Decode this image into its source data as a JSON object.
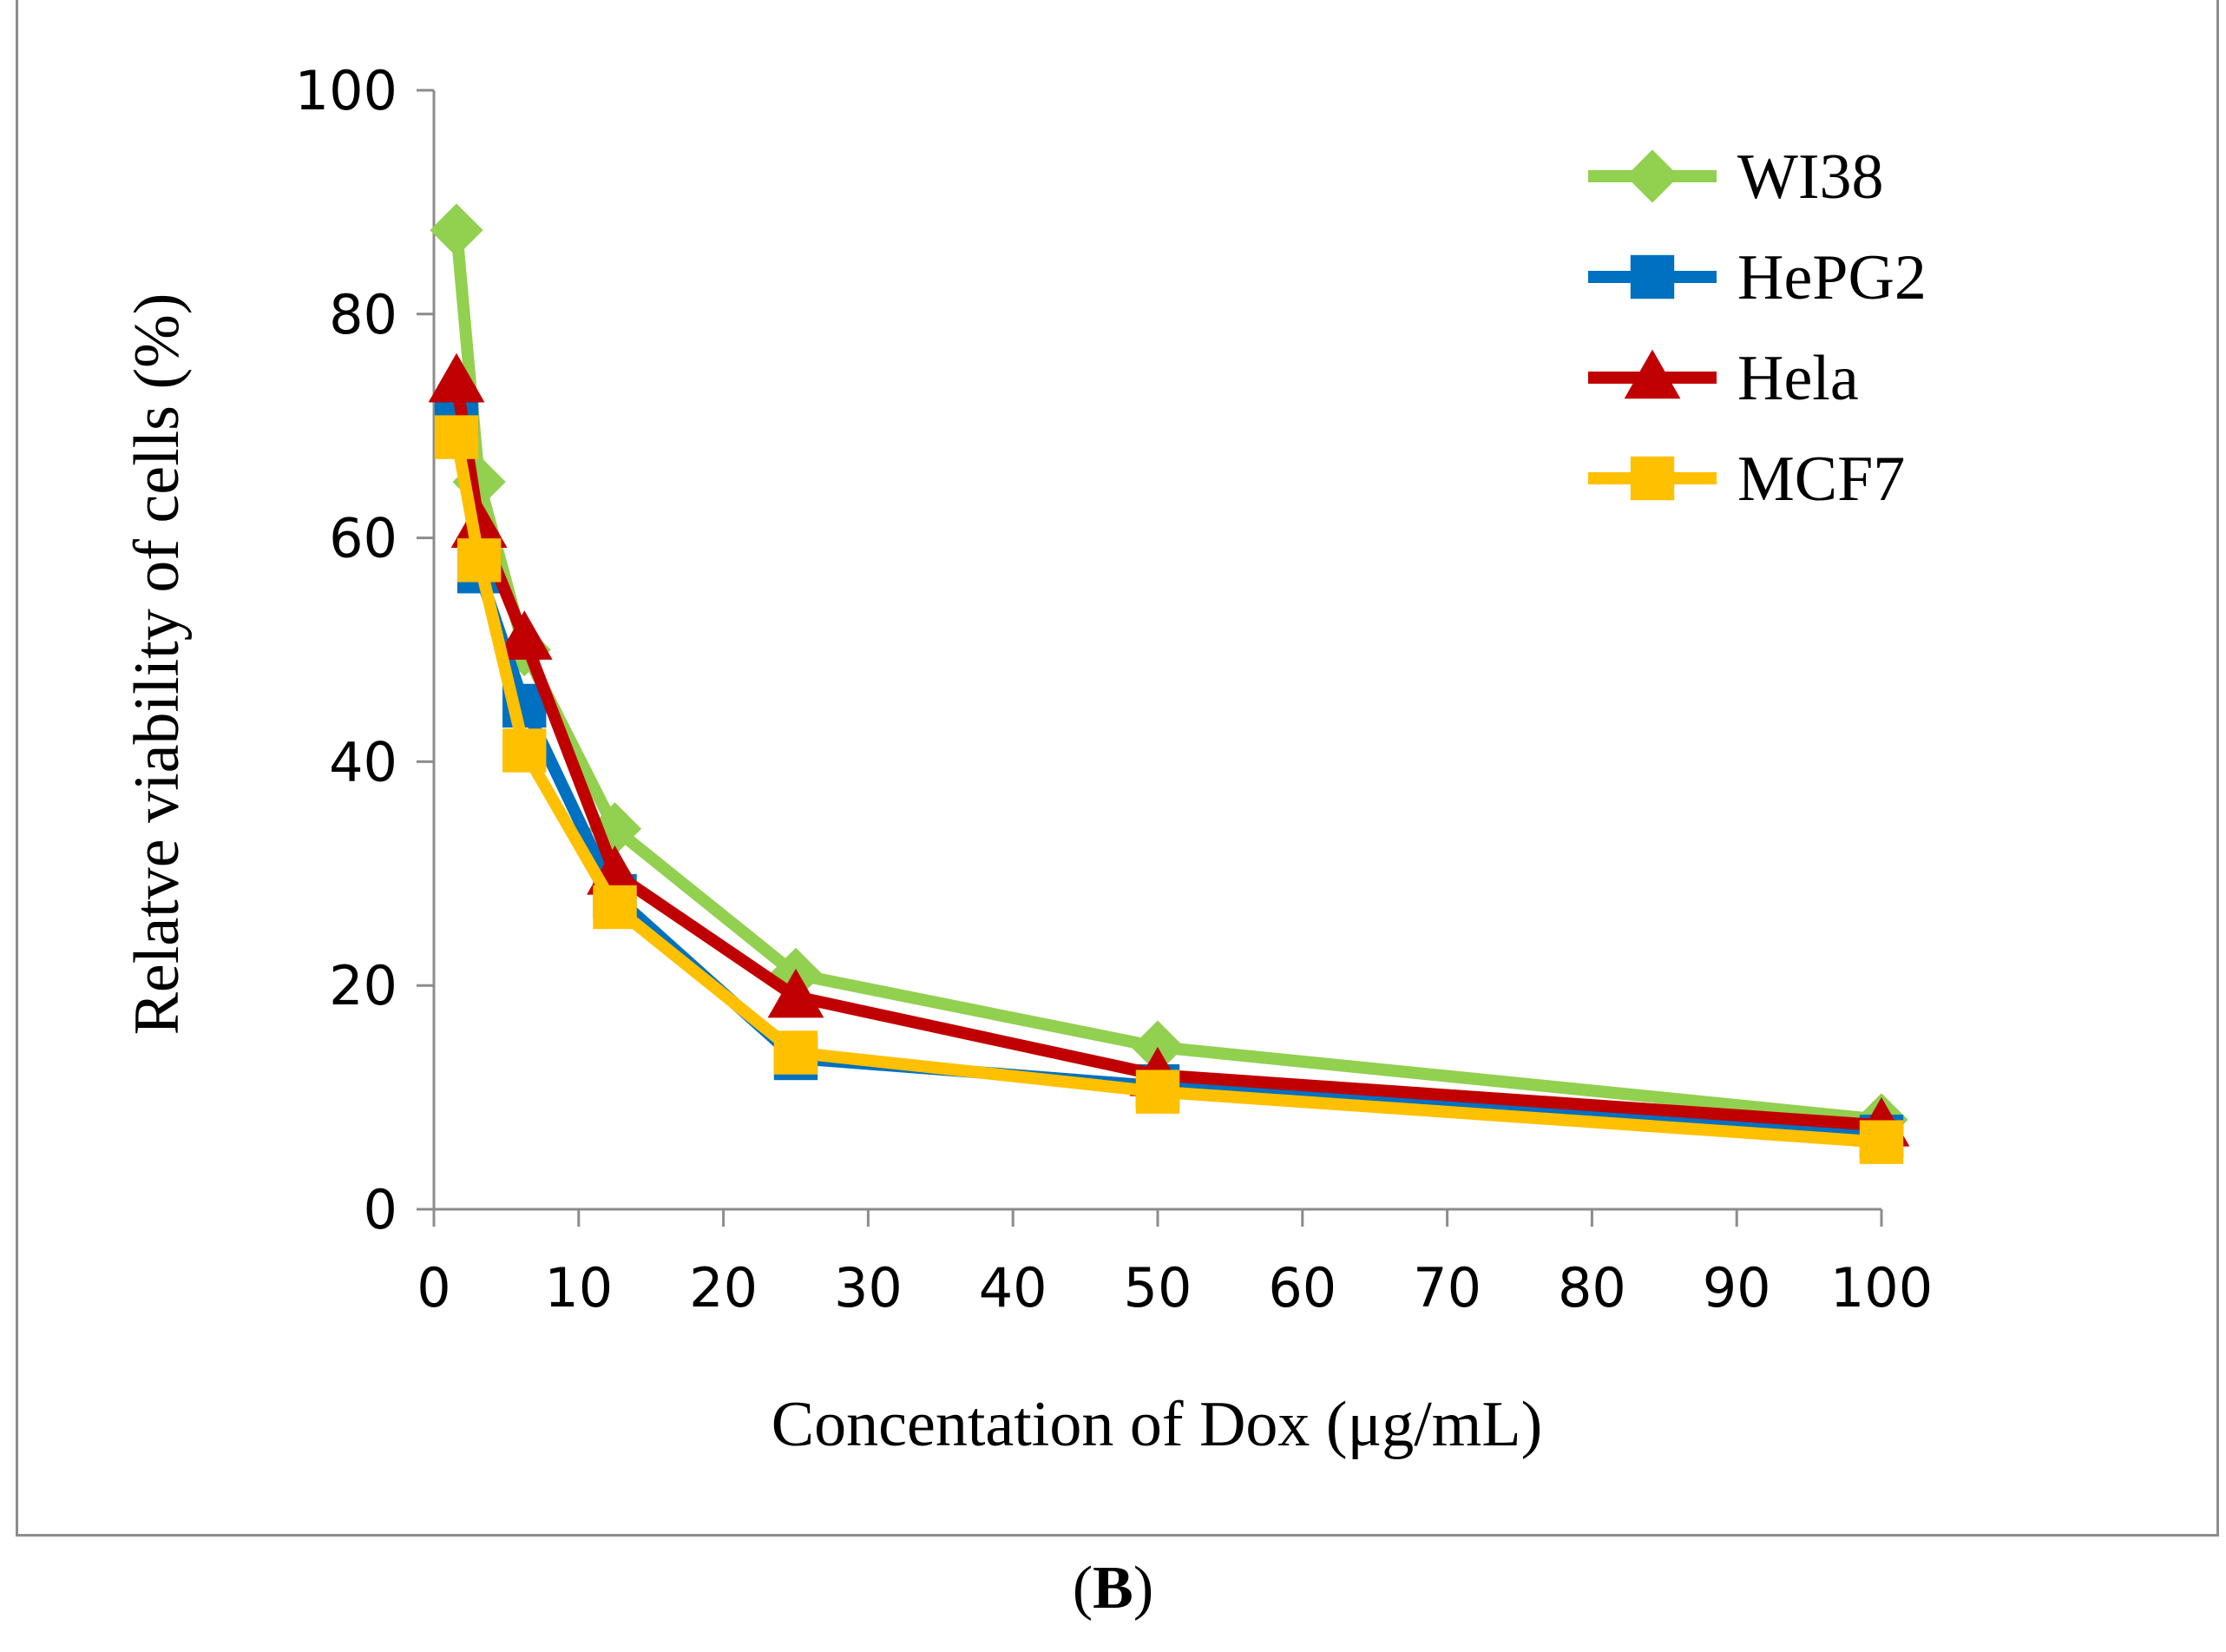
{
  "caption": {
    "open": "(",
    "letter": "B",
    "close": ")"
  },
  "chart_data": {
    "type": "line",
    "xlabel": "Concentation of Dox (μg/mL)",
    "ylabel": "Relatve viability of cells (%)",
    "xlim": [
      0,
      100
    ],
    "ylim": [
      0,
      100
    ],
    "xticks": [
      0,
      10,
      20,
      30,
      40,
      50,
      60,
      70,
      80,
      90,
      100
    ],
    "yticks": [
      0,
      20,
      40,
      60,
      80,
      100
    ],
    "grid": false,
    "legend_position": "top-right",
    "series": [
      {
        "name": "WI38",
        "color": "#92d050",
        "marker": "diamond",
        "x": [
          1.56,
          3.125,
          6.25,
          12.5,
          25,
          50,
          100
        ],
        "y": [
          87.5,
          65,
          50,
          34,
          21,
          14.5,
          8
        ]
      },
      {
        "name": "HePG2",
        "color": "#0070c0",
        "marker": "square",
        "x": [
          1.56,
          3.125,
          6.25,
          12.5,
          25,
          50,
          100
        ],
        "y": [
          71,
          57,
          45,
          28,
          13.5,
          11,
          6.5
        ]
      },
      {
        "name": "Hela",
        "color": "#c00000",
        "marker": "triangle",
        "x": [
          1.56,
          3.125,
          6.25,
          12.5,
          25,
          50,
          100
        ],
        "y": [
          74,
          61,
          51,
          30,
          19,
          12,
          7.5
        ]
      },
      {
        "name": "MCF7",
        "color": "#ffc000",
        "marker": "square",
        "x": [
          1.56,
          3.125,
          6.25,
          12.5,
          25,
          50,
          100
        ],
        "y": [
          69,
          58,
          41,
          27,
          14,
          10.5,
          6
        ]
      }
    ]
  }
}
